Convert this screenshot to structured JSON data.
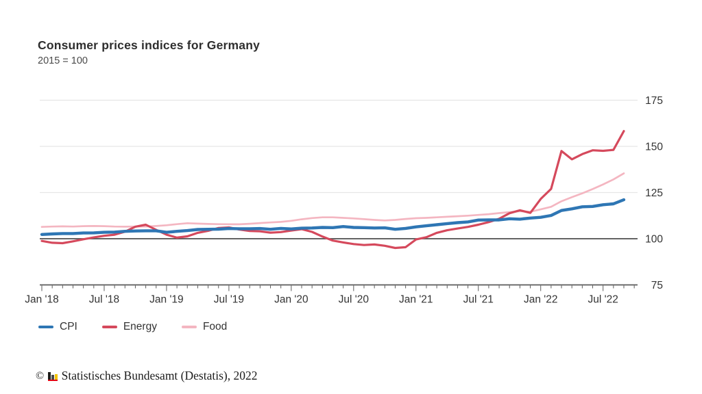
{
  "header": {
    "title": "Consumer prices indices for Germany",
    "subtitle": "2015 = 100"
  },
  "footer": {
    "copyright_symbol": "©",
    "source_text": "Statistisches Bundesamt (Destatis), 2022",
    "logo_icon": "destatis-bar-chart-logo"
  },
  "colors": {
    "cpi": "#2e76b4",
    "energy": "#d5495c",
    "food": "#f4b6c1",
    "baseline_100": "#4d4d4d",
    "gridline": "#e6e6e6",
    "axis": "#5a5a5a",
    "axis_text": "#333333"
  },
  "chart_data": {
    "type": "line",
    "title": "Consumer prices indices for Germany",
    "subtitle": "2015 = 100",
    "x_unit": "month",
    "x_start": "2018-01",
    "x_end": "2022-09",
    "n_points": 57,
    "x_tick_labels": [
      "Jan '18",
      "Jul '18",
      "Jan '19",
      "Jul '19",
      "Jan '20",
      "Jul '20",
      "Jan '21",
      "Jul '21",
      "Jan '22",
      "Jul '22"
    ],
    "x_major_tick_every": 6,
    "yticks": [
      75,
      100,
      125,
      150,
      175
    ],
    "ylim": [
      75,
      180
    ],
    "baseline": 100,
    "grid": "horizontal",
    "legend_position": "bottom-left",
    "y_axis_side": "right",
    "series": [
      {
        "name": "CPI",
        "color": "#2e76b4",
        "width": 4.4,
        "values": [
          102.3,
          102.6,
          102.8,
          102.8,
          103.1,
          103.2,
          103.5,
          103.6,
          104.0,
          104.2,
          104.3,
          104.3,
          103.5,
          104.0,
          104.4,
          105.0,
          105.1,
          105.2,
          105.5,
          105.4,
          105.4,
          105.5,
          105.1,
          105.6,
          105.3,
          105.7,
          105.8,
          106.1,
          106.0,
          106.6,
          106.1,
          106.0,
          105.8,
          105.9,
          105.1,
          105.6,
          106.4,
          107.0,
          107.6,
          108.2,
          108.7,
          109.1,
          110.1,
          110.2,
          110.2,
          110.8,
          110.6,
          111.2,
          111.6,
          112.6,
          115.3,
          116.2,
          117.3,
          117.5,
          118.4,
          118.9,
          121.1
        ]
      },
      {
        "name": "Energy",
        "color": "#d5495c",
        "width": 3.2,
        "values": [
          98.8,
          97.8,
          97.6,
          98.6,
          99.7,
          100.7,
          101.6,
          102.2,
          103.8,
          106.5,
          107.6,
          104.8,
          102.2,
          100.6,
          101.3,
          103.2,
          104.3,
          105.8,
          106.1,
          105.0,
          104.2,
          104.0,
          103.3,
          103.6,
          104.4,
          105.2,
          103.7,
          101.2,
          99.0,
          98.0,
          97.1,
          96.6,
          96.9,
          96.2,
          95.0,
          95.4,
          99.6,
          100.8,
          103.2,
          104.6,
          105.5,
          106.4,
          107.6,
          109.0,
          110.8,
          113.8,
          115.4,
          114.0,
          121.5,
          127.0,
          147.5,
          143.0,
          145.8,
          147.9,
          147.6,
          148.1,
          158.3
        ]
      },
      {
        "name": "Food",
        "color": "#f4b6c1",
        "width": 2.7,
        "values": [
          106.4,
          106.6,
          106.7,
          106.6,
          106.8,
          106.9,
          106.8,
          106.6,
          106.5,
          106.6,
          106.6,
          106.9,
          107.3,
          107.9,
          108.4,
          108.2,
          108.0,
          107.9,
          107.8,
          107.8,
          108.1,
          108.5,
          108.8,
          109.1,
          109.7,
          110.5,
          111.2,
          111.6,
          111.6,
          111.3,
          111.0,
          110.6,
          110.2,
          109.9,
          110.2,
          110.7,
          111.1,
          111.3,
          111.6,
          111.9,
          112.2,
          112.5,
          112.9,
          113.3,
          113.9,
          114.4,
          114.9,
          114.6,
          115.9,
          117.3,
          120.3,
          122.5,
          124.6,
          126.9,
          129.4,
          132.1,
          135.4
        ]
      }
    ]
  }
}
